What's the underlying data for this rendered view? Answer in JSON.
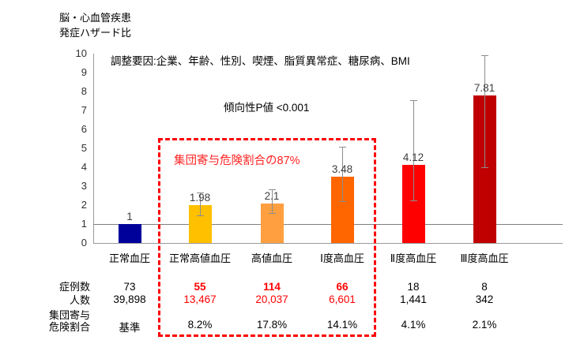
{
  "title": {
    "line1": "脳・心血管疾患",
    "line2": "発症ハザード比"
  },
  "annotations": {
    "adjustment": "調整要因:企業、年齢、性別、喫煙、脂質異常症、糖尿病、BMI",
    "p_trend": "傾向性P値 <0.001",
    "par_highlight": "集団寄与危険割合の87%"
  },
  "chart_data": {
    "type": "bar",
    "title": "脳・心血管疾患 発症ハザード比",
    "ylabel": "脳・心血管疾患 発症ハザード比",
    "xlabel": "",
    "categories": [
      "正常血圧",
      "正常高値血圧",
      "高値血圧",
      "Ⅰ度高血圧",
      "Ⅱ度高血圧",
      "Ⅲ度高血圧"
    ],
    "values": [
      1,
      1.98,
      2.1,
      3.48,
      4.12,
      7.81
    ],
    "value_labels": [
      "1",
      "1.98",
      "2.1",
      "3.48",
      "4.12",
      "7.81"
    ],
    "error_low": [
      null,
      1.45,
      1.6,
      2.2,
      2.25,
      4.0
    ],
    "error_high": [
      null,
      2.65,
      2.85,
      5.1,
      7.55,
      9.9
    ],
    "bar_colors": [
      "#00009B",
      "#FFC000",
      "#FF9F40",
      "#FF6600",
      "#FF0000",
      "#C00000"
    ],
    "ylim": [
      0,
      10
    ],
    "yticks": [
      0,
      1,
      2,
      3,
      4,
      5,
      6,
      7,
      8,
      9,
      10
    ],
    "reference_line": 1,
    "grid": false,
    "legend": "none"
  },
  "table": {
    "rows": [
      {
        "name": "cases",
        "label_lines": [
          "症例数"
        ],
        "values": [
          "73",
          "55",
          "114",
          "66",
          "18",
          "8"
        ],
        "red": [
          false,
          true,
          true,
          true,
          false,
          false
        ],
        "bold_red": true
      },
      {
        "name": "population",
        "label_lines": [
          "人数"
        ],
        "values": [
          "39,898",
          "13,467",
          "20,037",
          "6,601",
          "1,441",
          "342"
        ],
        "red": [
          false,
          true,
          true,
          true,
          false,
          false
        ],
        "bold_red": false
      },
      {
        "name": "par",
        "label_lines": [
          "集団寄与",
          "危険割合"
        ],
        "values": [
          "基準",
          "8.2%",
          "17.8%",
          "14.1%",
          "4.1%",
          "2.1%"
        ],
        "red": [
          false,
          false,
          false,
          false,
          false,
          false
        ],
        "bold_red": false
      }
    ]
  },
  "colors": {
    "highlight_box": "#FE0000",
    "highlight_text": "#FF2121",
    "error_bar": "#8C8C8C",
    "axis": "#9A9A9A",
    "value_label": "#3F3F3F",
    "table_red": "#FF0000"
  }
}
